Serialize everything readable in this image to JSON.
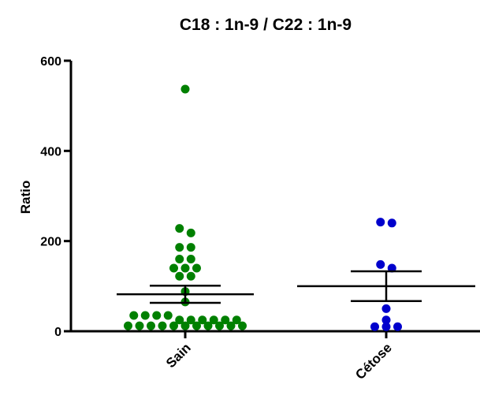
{
  "chart_data": {
    "type": "scatter-dot",
    "title": "C18 : 1n-9 / C22 : 1n-9",
    "y_label": "Ratio",
    "categories": [
      "Sain",
      "Cétose"
    ],
    "series": [
      {
        "color": "#008000",
        "values": [
          537,
          228,
          218,
          186,
          186,
          160,
          160,
          140,
          140,
          140,
          122,
          122,
          88,
          65,
          35,
          35,
          35,
          35,
          25,
          25,
          25,
          25,
          25,
          25,
          12,
          12,
          12,
          12,
          12,
          12,
          12,
          12,
          12,
          12,
          12
        ],
        "mean": 82,
        "sem": 19
      },
      {
        "color": "#0000cc",
        "values": [
          242,
          240,
          148,
          140,
          50,
          25,
          10,
          10,
          10
        ],
        "mean": 100,
        "sem": 33
      }
    ],
    "ylim": [
      0,
      600
    ],
    "yticks": [
      0,
      200,
      400,
      600
    ]
  }
}
